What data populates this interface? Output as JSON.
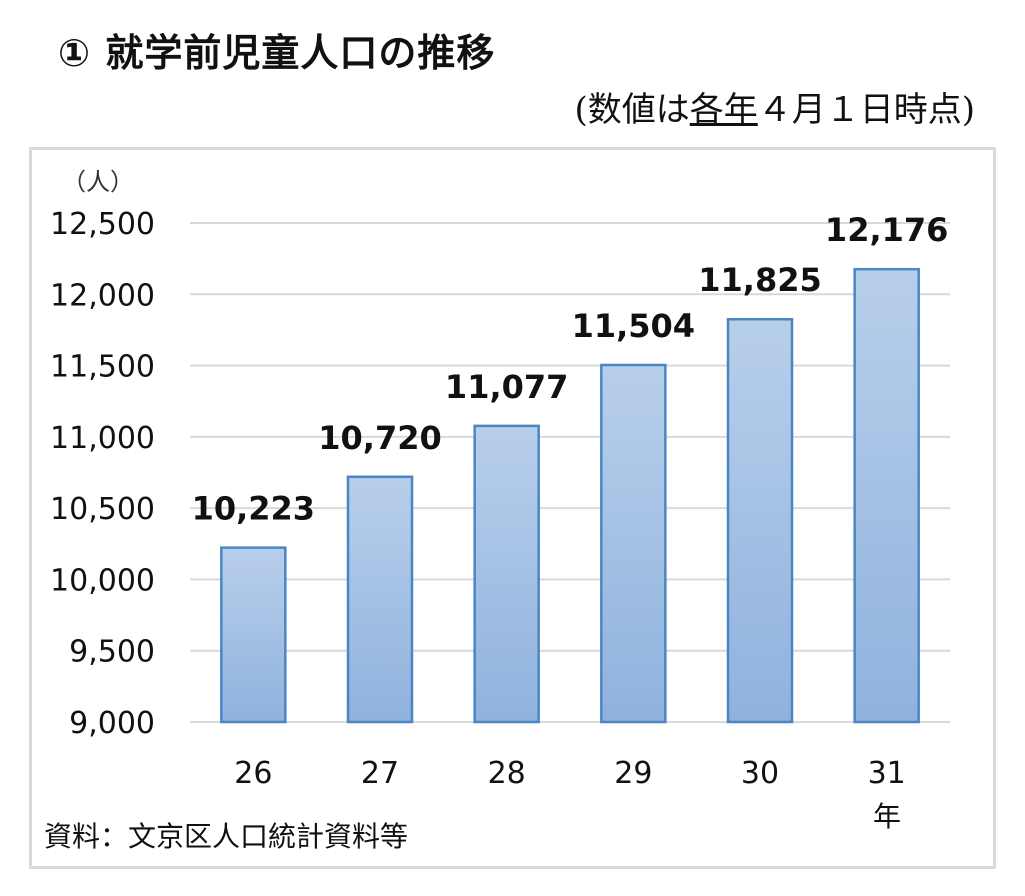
{
  "title": "① 就学前児童人口の推移",
  "subtitle": {
    "open": "(数値は",
    "underlined": "各年",
    "rest": "４月１日時点)"
  },
  "source": "資料：文京区人口統計資料等",
  "chart_data": {
    "type": "bar",
    "title": "① 就学前児童人口の推移",
    "ylabel": "（人）",
    "xlabel": "年",
    "categories": [
      "26",
      "27",
      "28",
      "29",
      "30",
      "31"
    ],
    "values": [
      10223,
      10720,
      11077,
      11504,
      11825,
      12176
    ],
    "value_labels": [
      "10,223",
      "10,720",
      "11,077",
      "11,504",
      "11,825",
      "12,176"
    ],
    "yticks": [
      "9,000",
      "9,500",
      "10,000",
      "10,500",
      "11,000",
      "11,500",
      "12,000",
      "12,500"
    ],
    "ylim": [
      9000,
      12500
    ],
    "grid": true,
    "legend": "none",
    "colors": {
      "bar_top": "#b8cfeb",
      "bar_bottom": "#8fb2dd",
      "bar_edge": "#4a86c5",
      "grid": "#d9d9d9"
    }
  }
}
